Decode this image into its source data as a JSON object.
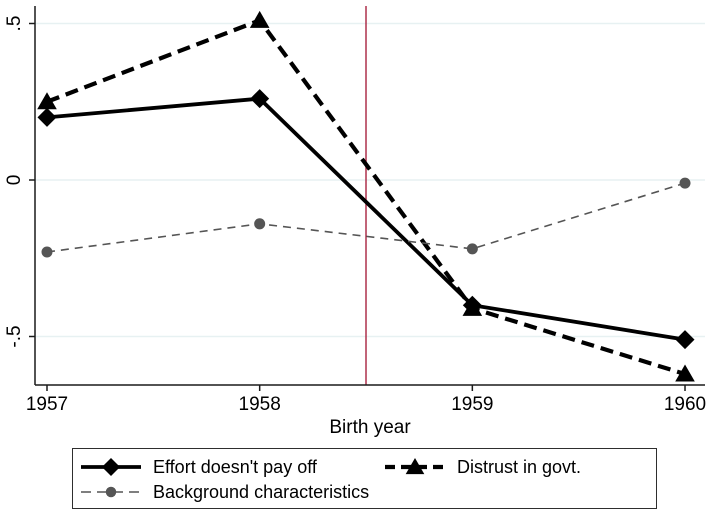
{
  "chart_data": {
    "type": "line",
    "title": "",
    "xlabel": "Birth year",
    "ylabel": "",
    "x": [
      1957,
      1958,
      1959,
      1960
    ],
    "x_tick_labels": [
      "1957",
      "1958",
      "1959",
      "1960"
    ],
    "y_ticks": [
      {
        "value": 0.5,
        "label": ".5"
      },
      {
        "value": 0.0,
        "label": "0"
      },
      {
        "value": -0.5,
        "label": "-.5"
      }
    ],
    "xlim": [
      1956.94,
      1960.1
    ],
    "ylim": [
      -0.66,
      0.57
    ],
    "grid": "horizontal gridlines at y ticks only",
    "gridline_color": "#e7f1f2",
    "axis_color": "#1a1a1a",
    "vline": {
      "x": 1958.5,
      "color": "#a8223f"
    },
    "series": [
      {
        "name": "Effort doesn't pay off",
        "values": [
          0.2,
          0.26,
          -0.4,
          -0.51
        ],
        "color": "#000000",
        "line": "solid",
        "width": 3.8,
        "dash": "",
        "marker": "diamond",
        "marker_size": 9.5
      },
      {
        "name": "Distrust in govt.",
        "values": [
          0.25,
          0.51,
          -0.41,
          -0.62
        ],
        "color": "#000000",
        "line": "dashed",
        "width": 4.2,
        "dash": "13 7",
        "marker": "triangle",
        "marker_size": 10
      },
      {
        "name": "Background characteristics",
        "values": [
          -0.23,
          -0.14,
          -0.22,
          -0.01
        ],
        "color": "#555555",
        "line": "dashed",
        "width": 1.6,
        "dash": "8 6",
        "marker": "circle",
        "marker_size": 9.5
      }
    ],
    "legend_position": "bottom box, two columns"
  }
}
